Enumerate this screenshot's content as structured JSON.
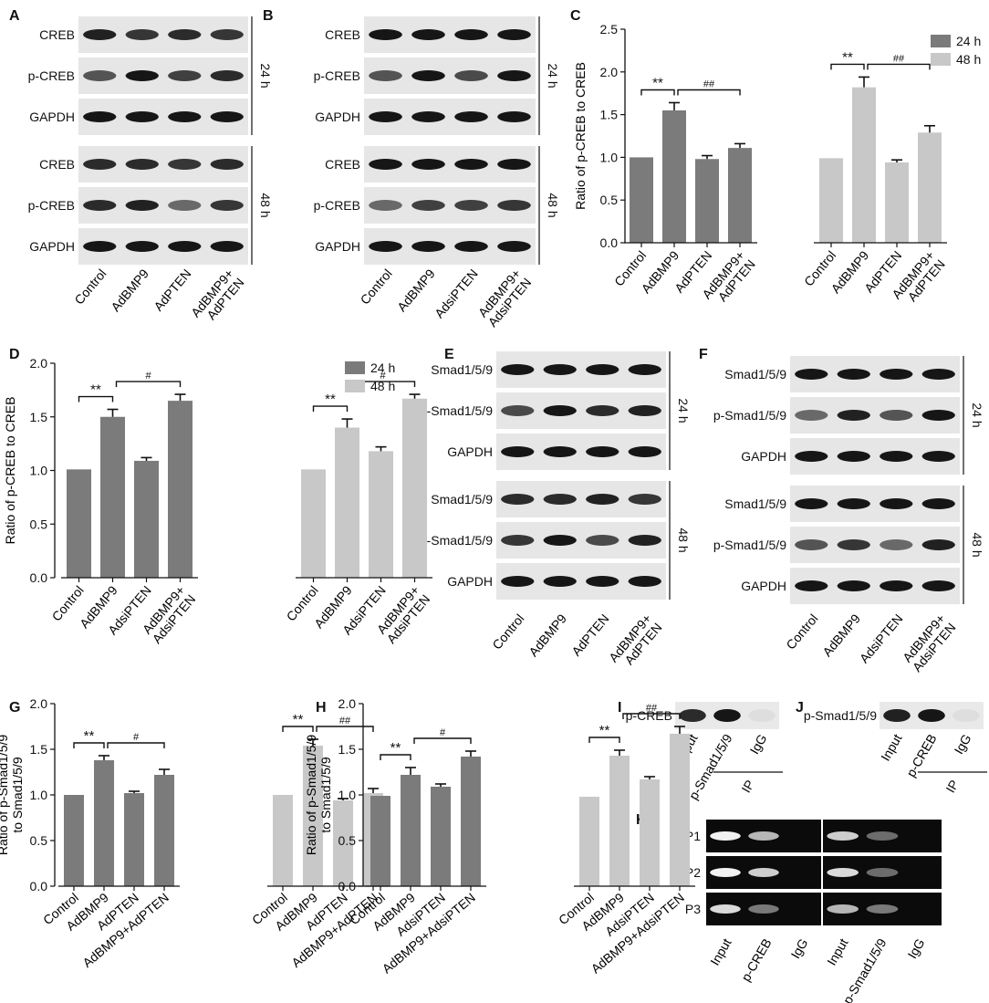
{
  "colors": {
    "dark": "#7b7b7b",
    "light": "#c8c8c8",
    "band": "#161616"
  },
  "panel_letters": [
    "A",
    "B",
    "C",
    "D",
    "E",
    "F",
    "G",
    "H",
    "I",
    "J",
    "K"
  ],
  "blots": {
    "A": {
      "top": {
        "rows": [
          "CREB",
          "p-CREB",
          "GAPDH"
        ],
        "time": "24 h"
      },
      "bottom": {
        "rows": [
          "CREB",
          "p-CREB",
          "GAPDH"
        ],
        "time": "48 h"
      },
      "lanes": [
        "Control",
        "AdBMP9",
        "AdPTEN",
        "AdBMP9+\nAdPTEN"
      ]
    },
    "B": {
      "top": {
        "rows": [
          "CREB",
          "p-CREB",
          "GAPDH"
        ],
        "time": "24 h"
      },
      "bottom": {
        "rows": [
          "CREB",
          "p-CREB",
          "GAPDH"
        ],
        "time": "48 h"
      },
      "lanes": [
        "Control",
        "AdBMP9",
        "AdsiPTEN",
        "AdBMP9+\nAdsiPTEN"
      ]
    },
    "E": {
      "top": {
        "rows": [
          "Smad1/5/9",
          "p-Smad1/5/9",
          "GAPDH"
        ],
        "time": "24 h"
      },
      "bottom": {
        "rows": [
          "Smad1/5/9",
          "p-Smad1/5/9",
          "GAPDH"
        ],
        "time": "48 h"
      },
      "lanes": [
        "Control",
        "AdBMP9",
        "AdPTEN",
        "AdBMP9+\nAdPTEN"
      ]
    },
    "F": {
      "top": {
        "rows": [
          "Smad1/5/9",
          "p-Smad1/5/9",
          "GAPDH"
        ],
        "time": "24 h"
      },
      "bottom": {
        "rows": [
          "Smad1/5/9",
          "p-Smad1/5/9",
          "GAPDH"
        ],
        "time": "48 h"
      },
      "lanes": [
        "Control",
        "AdBMP9",
        "AdsiPTEN",
        "AdBMP9+\nAdsiPTEN"
      ]
    },
    "I": {
      "row": "p-CREB",
      "lanes": [
        "Input",
        "p-Smad1/5/9",
        "IgG"
      ],
      "group": "IP"
    },
    "J": {
      "row": "p-Smad1/5/9",
      "lanes": [
        "Input",
        "p-CREB",
        "IgG"
      ],
      "group": "IP"
    },
    "K": {
      "rows": [
        "P1",
        "P2",
        "P3"
      ],
      "lanes": [
        "Input",
        "p-CREB",
        "IgG",
        "Input",
        "p-Smad1/5/9",
        "IgG"
      ]
    }
  },
  "chart_data": [
    {
      "panel": "C",
      "type": "bar",
      "ylabel": "Ratio of  p-CREB to CREB",
      "ylim": [
        0,
        2.5
      ],
      "yticks": [
        "0.0",
        "0.5",
        "1.0",
        "1.5",
        "2.0",
        "2.5"
      ],
      "categories": [
        "Control",
        "AdBMP9",
        "AdPTEN",
        "AdBMP9+\nAdPTEN"
      ],
      "legend": [
        "24 h",
        "48 h"
      ],
      "legend_position": "top-right",
      "series": [
        {
          "name": "24 h",
          "values": [
            1.0,
            1.55,
            0.98,
            1.11
          ],
          "errors": [
            0,
            0.09,
            0.04,
            0.05
          ]
        },
        {
          "name": "48 h",
          "values": [
            0.99,
            1.82,
            0.94,
            1.29
          ],
          "errors": [
            0,
            0.12,
            0.03,
            0.08
          ]
        }
      ],
      "annotations": [
        {
          "series": 0,
          "from": 0,
          "to": 1,
          "label": "**"
        },
        {
          "series": 0,
          "from": 1,
          "to": 3,
          "label": "##"
        },
        {
          "series": 1,
          "from": 0,
          "to": 1,
          "label": "**"
        },
        {
          "series": 1,
          "from": 1,
          "to": 3,
          "label": "##"
        }
      ]
    },
    {
      "panel": "D",
      "type": "bar",
      "ylabel": "Ratio of  p-CREB to CREB",
      "ylim": [
        0,
        2.0
      ],
      "yticks": [
        "0.0",
        "0.5",
        "1.0",
        "1.5",
        "2.0"
      ],
      "categories": [
        "Control",
        "AdBMP9",
        "AdsiPTEN",
        "AdBMP9+\nAdsiPTEN"
      ],
      "legend": [
        "24 h",
        "48 h"
      ],
      "legend_position": "top-right",
      "series": [
        {
          "name": "24 h",
          "values": [
            1.01,
            1.5,
            1.09,
            1.65
          ],
          "errors": [
            0,
            0.07,
            0.03,
            0.06
          ]
        },
        {
          "name": "48 h",
          "values": [
            1.01,
            1.4,
            1.18,
            1.67
          ],
          "errors": [
            0,
            0.08,
            0.04,
            0.04
          ]
        }
      ],
      "annotations": [
        {
          "series": 0,
          "from": 0,
          "to": 1,
          "label": "**"
        },
        {
          "series": 0,
          "from": 1,
          "to": 3,
          "label": "#"
        },
        {
          "series": 1,
          "from": 0,
          "to": 1,
          "label": "**"
        },
        {
          "series": 1,
          "from": 1,
          "to": 3,
          "label": "#"
        }
      ]
    },
    {
      "panel": "G",
      "type": "bar",
      "ylabel": "Ratio of  p-Smad1/5/9\nto Smad1/5/9",
      "ylim": [
        0,
        2.0
      ],
      "yticks": [
        "0.0",
        "0.5",
        "1.0",
        "1.5",
        "2.0"
      ],
      "categories": [
        "Control",
        "AdBMP9",
        "AdPTEN",
        "AdBMP9+AdPTEN"
      ],
      "series": [
        {
          "name": "24 h",
          "values": [
            1.0,
            1.38,
            1.02,
            1.22
          ],
          "errors": [
            0,
            0.05,
            0.02,
            0.06
          ]
        },
        {
          "name": "48 h",
          "values": [
            1.0,
            1.54,
            0.94,
            1.02
          ],
          "errors": [
            0,
            0.07,
            0.02,
            0.05
          ]
        }
      ],
      "annotations": [
        {
          "series": 0,
          "from": 0,
          "to": 1,
          "label": "**"
        },
        {
          "series": 0,
          "from": 1,
          "to": 3,
          "label": "#"
        },
        {
          "series": 1,
          "from": 0,
          "to": 1,
          "label": "**"
        },
        {
          "series": 1,
          "from": 1,
          "to": 3,
          "label": "##"
        }
      ]
    },
    {
      "panel": "H",
      "type": "bar",
      "ylabel": "Ratio of  p-Smad1/5/9\nto Smad1/5/9",
      "ylim": [
        0,
        2.0
      ],
      "yticks": [
        "0.0",
        "0.5",
        "1.0",
        "1.5",
        "2.0"
      ],
      "categories": [
        "Control",
        "AdBMP9",
        "AdsiPTEN",
        "AdBMP9+AdsiPTEN"
      ],
      "series": [
        {
          "name": "24 h",
          "values": [
            0.99,
            1.22,
            1.09,
            1.42
          ],
          "errors": [
            0,
            0.08,
            0.03,
            0.06
          ]
        },
        {
          "name": "48 h",
          "values": [
            0.98,
            1.43,
            1.17,
            1.67
          ],
          "errors": [
            0,
            0.06,
            0.03,
            0.08
          ]
        }
      ],
      "annotations": [
        {
          "series": 0,
          "from": 0,
          "to": 1,
          "label": "**"
        },
        {
          "series": 0,
          "from": 1,
          "to": 3,
          "label": "#"
        },
        {
          "series": 1,
          "from": 0,
          "to": 1,
          "label": "**"
        },
        {
          "series": 1,
          "from": 1,
          "to": 3,
          "label": "##"
        }
      ]
    }
  ]
}
